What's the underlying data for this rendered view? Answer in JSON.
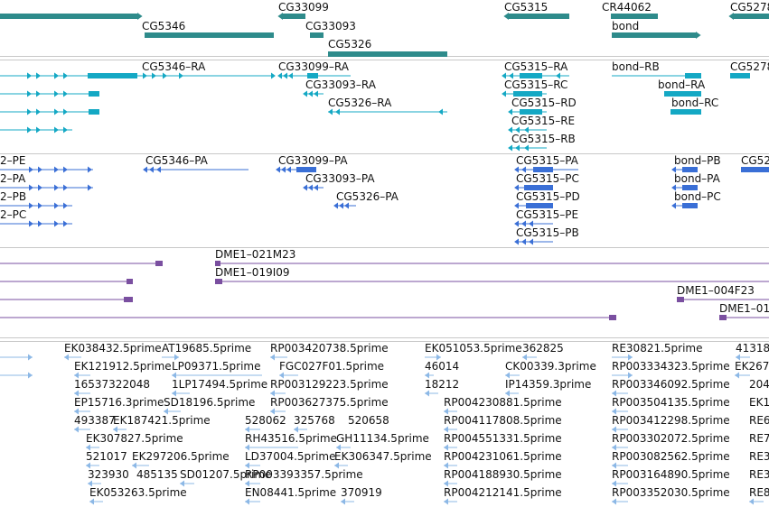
{
  "colors": {
    "gene": "#2e8b8b",
    "transcript": "#14a8c4",
    "protein": "#3a6fd6",
    "clone": "#7a4fa0",
    "est": "#8cb8e6",
    "divider": "#c8c8c8"
  },
  "tracks": [
    {
      "name": "genes",
      "color_key": "gene",
      "labels": [
        {
          "text": "CG33099"
        },
        {
          "text": "CG5315"
        },
        {
          "text": "CR44062"
        },
        {
          "text": "CG5278"
        },
        {
          "text": "CG5346"
        },
        {
          "text": "CG33093"
        },
        {
          "text": "bond"
        },
        {
          "text": "CG5326"
        }
      ]
    },
    {
      "name": "transcripts",
      "color_key": "transcript",
      "labels": [
        {
          "text": "CG5346–RA"
        },
        {
          "text": "CG33099–RA"
        },
        {
          "text": "CG5315–RA"
        },
        {
          "text": "bond–RB"
        },
        {
          "text": "CG5278"
        },
        {
          "text": "CG33093–RA"
        },
        {
          "text": "CG5315–RC"
        },
        {
          "text": "bond–RA"
        },
        {
          "text": "CG5326–RA"
        },
        {
          "text": "CG5315–RD"
        },
        {
          "text": "bond–RC"
        },
        {
          "text": "CG5315–RE"
        },
        {
          "text": "CG5315–RB"
        }
      ]
    },
    {
      "name": "proteins",
      "color_key": "protein",
      "labels": [
        {
          "text": "2–PE"
        },
        {
          "text": "CG5346–PA"
        },
        {
          "text": "CG33099–PA"
        },
        {
          "text": "CG5315–PA"
        },
        {
          "text": "bond–PB"
        },
        {
          "text": "CG52"
        },
        {
          "text": "2–PA"
        },
        {
          "text": "CG33093–PA"
        },
        {
          "text": "CG5315–PC"
        },
        {
          "text": "bond–PA"
        },
        {
          "text": "2–PB"
        },
        {
          "text": "CG5326–PA"
        },
        {
          "text": "CG5315–PD"
        },
        {
          "text": "bond–PC"
        },
        {
          "text": "2–PC"
        },
        {
          "text": "CG5315–PE"
        },
        {
          "text": "CG5315–PB"
        }
      ]
    },
    {
      "name": "clones",
      "color_key": "clone",
      "labels": [
        {
          "text": "DME1–021M23"
        },
        {
          "text": "DME1–019I09"
        },
        {
          "text": "DME1–004F23"
        },
        {
          "text": "DME1–01"
        }
      ]
    },
    {
      "name": "ests",
      "color_key": "est",
      "labels": [
        {
          "text": "EK038432.5prime"
        },
        {
          "text": "AT19685.5prime"
        },
        {
          "text": "RP003420738.5prime"
        },
        {
          "text": "EK051053.5prime"
        },
        {
          "text": "362825"
        },
        {
          "text": "RE30821.5prime"
        },
        {
          "text": "41318"
        },
        {
          "text": "EK121912.5prime"
        },
        {
          "text": "LP09371.5prime"
        },
        {
          "text": "FGC027F01.5prime"
        },
        {
          "text": "46014"
        },
        {
          "text": "CK00339.3prime"
        },
        {
          "text": "RP003334323.5prime"
        },
        {
          "text": "EK267"
        },
        {
          "text": "16537322048"
        },
        {
          "text": "1LP17494.5prime"
        },
        {
          "text": "RP003129223.5prime"
        },
        {
          "text": "18212"
        },
        {
          "text": "IP14359.3prime"
        },
        {
          "text": "RP003346092.5prime"
        },
        {
          "text": "204"
        },
        {
          "text": "EP15716.3prime"
        },
        {
          "text": "SD18196.5prime"
        },
        {
          "text": "RP003627375.5prime"
        },
        {
          "text": "RP004230881.5prime"
        },
        {
          "text": "RP003504135.5prime"
        },
        {
          "text": "EK1"
        },
        {
          "text": "493387"
        },
        {
          "text": "EK187421.5prime"
        },
        {
          "text": "528062"
        },
        {
          "text": "325768"
        },
        {
          "text": "520658"
        },
        {
          "text": "RP004117808.5prime"
        },
        {
          "text": "RP003412298.5prime"
        },
        {
          "text": "RE6"
        },
        {
          "text": "EK307827.5prime"
        },
        {
          "text": "RH43516.5prime"
        },
        {
          "text": "GH11134.5prime"
        },
        {
          "text": "RP004551331.5prime"
        },
        {
          "text": "RP003302072.5prime"
        },
        {
          "text": "RE7"
        },
        {
          "text": "521017"
        },
        {
          "text": "EK297206.5prime"
        },
        {
          "text": "LD37004.5prime"
        },
        {
          "text": "EK306347.5prime"
        },
        {
          "text": "RP004231061.5prime"
        },
        {
          "text": "RP003082562.5prime"
        },
        {
          "text": "RE3"
        },
        {
          "text": "323930"
        },
        {
          "text": "485135"
        },
        {
          "text": "SD01207.5prime"
        },
        {
          "text": "RP003393357.5prime"
        },
        {
          "text": "RP004188930.5prime"
        },
        {
          "text": "RP003164890.5prime"
        },
        {
          "text": "RE3"
        },
        {
          "text": "EK053263.5prime"
        },
        {
          "text": "EN08441.5prime"
        },
        {
          "text": "370919"
        },
        {
          "text": "RP004212141.5prime"
        },
        {
          "text": "RP003352030.5prime"
        },
        {
          "text": "RE8"
        }
      ]
    }
  ]
}
